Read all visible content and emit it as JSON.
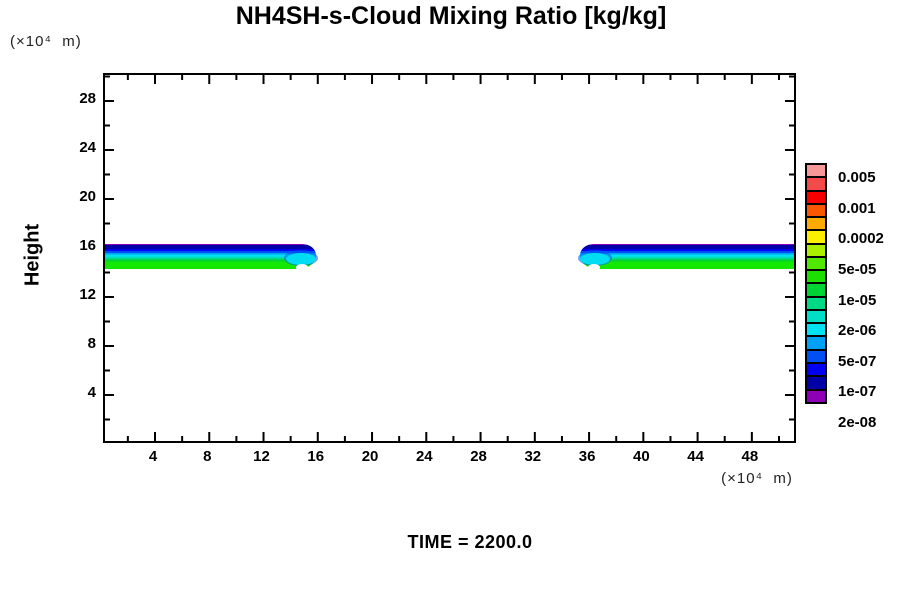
{
  "chart_data": {
    "type": "heatmap",
    "subtype": "filled-contour-cross-section",
    "title": "NH4SH-s-Cloud Mixing Ratio [kg/kg]",
    "ylabel": "Height",
    "y_unit": "(×10⁴  m)",
    "x_unit": "(×10⁴  m)",
    "time_label": "TIME = 2200.0",
    "xlim": [
      0.3,
      51.1
    ],
    "ylim": [
      0,
      30
    ],
    "x_major_ticks": [
      4,
      8,
      12,
      16,
      20,
      24,
      28,
      32,
      36,
      40,
      44,
      48
    ],
    "x_minor_step": 2,
    "y_major_ticks": [
      4,
      8,
      12,
      16,
      20,
      24,
      28
    ],
    "y_minor_step": 2,
    "grid": false,
    "legend_position": "right-colorbar",
    "colorbar": {
      "labels": [
        "0.005",
        "0.001",
        "0.0002",
        "5e-05",
        "1e-05",
        "2e-06",
        "5e-07",
        "1e-07",
        "2e-08"
      ],
      "label_every_n_cells": 2,
      "cell_colors_top_to_bottom": [
        "#f79898",
        "#f34a4a",
        "#f80000",
        "#fa5800",
        "#ffaa00",
        "#fcf000",
        "#aaee00",
        "#50e800",
        "#1ee000",
        "#00d434",
        "#00da86",
        "#00dfc6",
        "#00e2f4",
        "#00a0f4",
        "#0050f4",
        "#0000f4",
        "#0000a6",
        "#8e00b6"
      ]
    },
    "bands": [
      {
        "name": "left-cloud-band",
        "x_from": 0.3,
        "x_to": 15.9,
        "y_top": 16.3,
        "y_bottom": 14.3,
        "tip": "right"
      },
      {
        "name": "right-cloud-band",
        "x_from": 35.3,
        "x_to": 51.1,
        "y_top": 16.3,
        "y_bottom": 14.3,
        "tip": "left"
      }
    ],
    "band_vertical_profile_top_to_bottom": [
      {
        "level": "2e-08",
        "color": "#8e00b6",
        "from": 0,
        "to": 5
      },
      {
        "level": "5e-08",
        "color": "#0000a6",
        "from": 5,
        "to": 21
      },
      {
        "level": "1e-07",
        "color": "#0000f4",
        "from": 21,
        "to": 29
      },
      {
        "level": "2e-07",
        "color": "#0050f4",
        "from": 29,
        "to": 36
      },
      {
        "level": "5e-07",
        "color": "#00a0f4",
        "from": 36,
        "to": 42
      },
      {
        "level": "1e-06",
        "color": "#00e2f4",
        "from": 42,
        "to": 49
      },
      {
        "level": "2e-06",
        "color": "#00dfc6",
        "from": 49,
        "to": 56
      },
      {
        "level": "5e-06",
        "color": "#00da86",
        "from": 56,
        "to": 63
      },
      {
        "level": "1e-05",
        "color": "#00d434",
        "from": 63,
        "to": 70
      },
      {
        "level": "2e-05",
        "color": "#14e800",
        "from": 70,
        "to": 100
      }
    ],
    "colors": {
      "axis": "#000000",
      "background": "#ffffff"
    }
  }
}
